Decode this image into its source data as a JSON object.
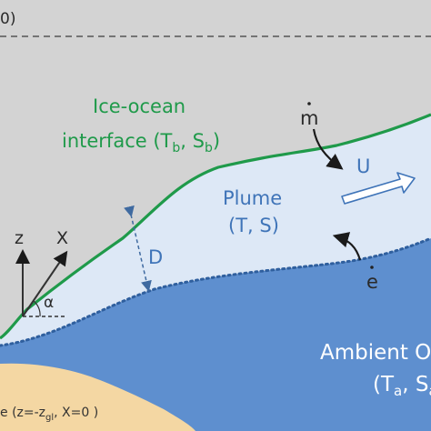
{
  "labels": {
    "surface_fragment": "0)",
    "interface_line1": "Ice-ocean",
    "interface_line2_prefix": "interface (T",
    "interface_sub_b1": "b",
    "interface_mid": ", S",
    "interface_sub_b2": "b",
    "interface_close": ")",
    "melt_rate_symbol": "m",
    "velocity_symbol": "U",
    "plume_line1": "Plume",
    "plume_line2": "(T, S)",
    "entrainment_symbol": "e",
    "thickness_symbol": "D",
    "axis_z": "z",
    "axis_x": "X",
    "angle_symbol": "α",
    "ambient_line1": "Ambient O",
    "ambient_line2_prefix": "(T",
    "ambient_sub_a": "a",
    "ambient_line2_mid": ", S",
    "ambient_sub_a2": "a",
    "ground_prefix": "e (z=-z",
    "ground_sub": "gl",
    "ground_suffix": ", X=0 )"
  },
  "colors": {
    "ice": "#d3d3d3",
    "interface": "#1f9a4a",
    "plume": "#dde8f6",
    "ambient": "#5e8fcf",
    "sediment": "#f4d7a3",
    "label_blue": "#3f74b8"
  }
}
